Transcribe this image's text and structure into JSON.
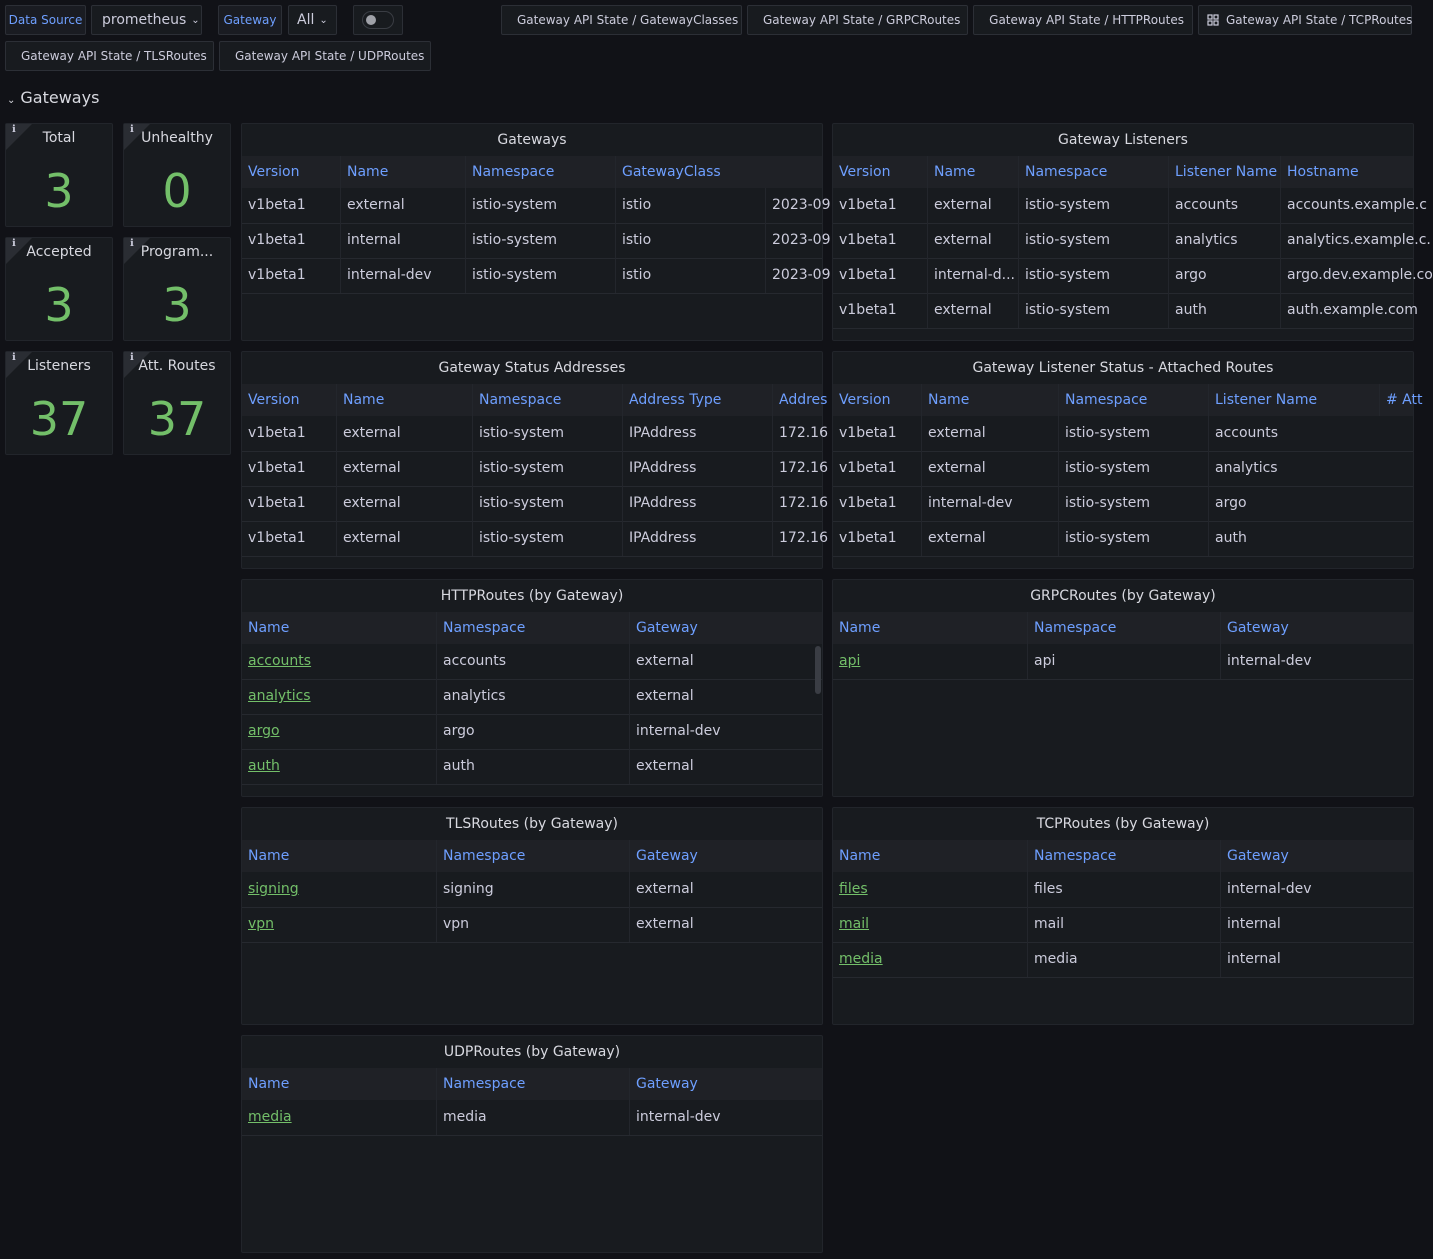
{
  "toolbar": {
    "variables": [
      {
        "label": "Data Source",
        "value": "prometheus"
      },
      {
        "label": "Gateway",
        "value": "All"
      }
    ],
    "links": [
      "Gateway API State / GatewayClasses",
      "Gateway API State / GRPCRoutes",
      "Gateway API State / HTTPRoutes",
      "Gateway API State / TCPRoutes",
      "Gateway API State / TLSRoutes",
      "Gateway API State / UDPRoutes"
    ]
  },
  "row_title": "Gateways",
  "stats": [
    {
      "title": "Total",
      "value": 3
    },
    {
      "title": "Unhealthy",
      "value": 0
    },
    {
      "title": "Accepted",
      "value": 3
    },
    {
      "title": "Program...",
      "value": 3
    },
    {
      "title": "Listeners",
      "value": 37
    },
    {
      "title": "Att. Routes",
      "value": 37
    }
  ],
  "tables": [
    {
      "title": "Gateways",
      "columns": [
        "Version",
        "Name",
        "Namespace",
        "GatewayClass"
      ],
      "rows": [
        [
          "v1beta1",
          "external",
          "istio-system",
          "istio",
          "2023-09"
        ],
        [
          "v1beta1",
          "internal",
          "istio-system",
          "istio",
          "2023-09"
        ],
        [
          "v1beta1",
          "internal-dev",
          "istio-system",
          "istio",
          "2023-09"
        ]
      ]
    },
    {
      "title": "Gateway Listeners",
      "columns": [
        "Version",
        "Name",
        "Namespace",
        "Listener Name",
        "Hostname"
      ],
      "rows": [
        [
          "v1beta1",
          "external",
          "istio-system",
          "accounts",
          "accounts.example.c"
        ],
        [
          "v1beta1",
          "external",
          "istio-system",
          "analytics",
          "analytics.example.c."
        ],
        [
          "v1beta1",
          "internal-d...",
          "istio-system",
          "argo",
          "argo.dev.example.co"
        ],
        [
          "v1beta1",
          "external",
          "istio-system",
          "auth",
          "auth.example.com"
        ]
      ]
    },
    {
      "title": "Gateway Status Addresses",
      "columns": [
        "Version",
        "Name",
        "Namespace",
        "Address Type",
        "Addres"
      ],
      "rows": [
        [
          "v1beta1",
          "external",
          "istio-system",
          "IPAddress",
          "172.16"
        ],
        [
          "v1beta1",
          "external",
          "istio-system",
          "IPAddress",
          "172.16"
        ],
        [
          "v1beta1",
          "external",
          "istio-system",
          "IPAddress",
          "172.16"
        ],
        [
          "v1beta1",
          "external",
          "istio-system",
          "IPAddress",
          "172.16"
        ]
      ]
    },
    {
      "title": "Gateway Listener Status - Attached Routes",
      "columns": [
        "Version",
        "Name",
        "Namespace",
        "Listener Name",
        "# Att"
      ],
      "rows": [
        [
          "v1beta1",
          "external",
          "istio-system",
          "accounts"
        ],
        [
          "v1beta1",
          "external",
          "istio-system",
          "analytics"
        ],
        [
          "v1beta1",
          "internal-dev",
          "istio-system",
          "argo"
        ],
        [
          "v1beta1",
          "external",
          "istio-system",
          "auth"
        ]
      ]
    },
    {
      "title": "HTTPRoutes (by Gateway)",
      "columns": [
        "Name",
        "Namespace",
        "Gateway"
      ],
      "rows": [
        [
          "accounts",
          "accounts",
          "external"
        ],
        [
          "analytics",
          "analytics",
          "external"
        ],
        [
          "argo",
          "argo",
          "internal-dev"
        ],
        [
          "auth",
          "auth",
          "external"
        ]
      ]
    },
    {
      "title": "GRPCRoutes (by Gateway)",
      "columns": [
        "Name",
        "Namespace",
        "Gateway"
      ],
      "rows": [
        [
          "api",
          "api",
          "internal-dev"
        ]
      ]
    },
    {
      "title": "TLSRoutes (by Gateway)",
      "columns": [
        "Name",
        "Namespace",
        "Gateway"
      ],
      "rows": [
        [
          "signing",
          "signing",
          "external"
        ],
        [
          "vpn",
          "vpn",
          "external"
        ]
      ]
    },
    {
      "title": "TCPRoutes (by Gateway)",
      "columns": [
        "Name",
        "Namespace",
        "Gateway"
      ],
      "rows": [
        [
          "files",
          "files",
          "internal-dev"
        ],
        [
          "mail",
          "mail",
          "internal"
        ],
        [
          "media",
          "media",
          "internal"
        ]
      ]
    },
    {
      "title": "UDPRoutes (by Gateway)",
      "columns": [
        "Name",
        "Namespace",
        "Gateway"
      ],
      "rows": [
        [
          "media",
          "media",
          "internal-dev"
        ]
      ]
    }
  ]
}
